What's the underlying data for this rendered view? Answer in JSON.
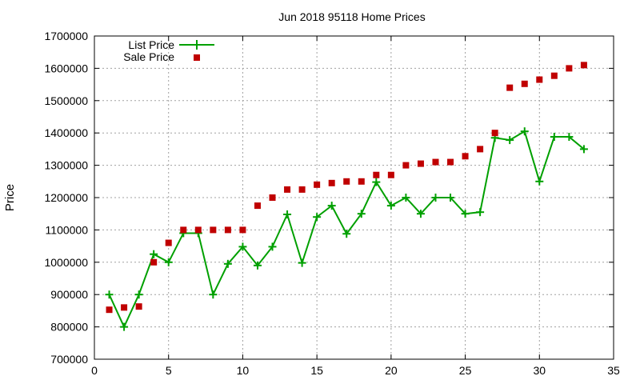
{
  "chart_data": {
    "type": "line",
    "title": "Jun 2018 95118 Home Prices",
    "xlabel": "",
    "ylabel": "Price",
    "xlim": [
      0,
      35
    ],
    "ylim": [
      700000,
      1700000
    ],
    "x_ticks": [
      0,
      5,
      10,
      15,
      20,
      25,
      30,
      35
    ],
    "y_ticks": [
      700000,
      800000,
      900000,
      1000000,
      1100000,
      1200000,
      1300000,
      1400000,
      1500000,
      1600000,
      1700000
    ],
    "grid": true,
    "legend_position": "top-left",
    "series": [
      {
        "name": "List Price",
        "style": "line-points",
        "color": "#00a000",
        "x": [
          1,
          2,
          3,
          4,
          5,
          6,
          7,
          8,
          9,
          10,
          11,
          12,
          13,
          14,
          15,
          16,
          17,
          18,
          19,
          20,
          21,
          22,
          23,
          24,
          25,
          26,
          27,
          28,
          29,
          30,
          31,
          32,
          33
        ],
        "values": [
          900000,
          800000,
          900000,
          1025000,
          1000000,
          1090000,
          1090000,
          900000,
          995000,
          1048000,
          990000,
          1048000,
          1148000,
          998000,
          1140000,
          1175000,
          1088000,
          1150000,
          1248000,
          1175000,
          1200000,
          1150000,
          1200000,
          1200000,
          1150000,
          1155000,
          1385000,
          1378000,
          1405000,
          1250000,
          1388000,
          1388000,
          1350000
        ]
      },
      {
        "name": "Sale Price",
        "style": "points",
        "color": "#c00000",
        "x": [
          1,
          2,
          3,
          4,
          5,
          6,
          7,
          8,
          9,
          10,
          11,
          12,
          13,
          14,
          15,
          16,
          17,
          18,
          19,
          20,
          21,
          22,
          23,
          24,
          25,
          26,
          27,
          28,
          29,
          30,
          31,
          32,
          33
        ],
        "values": [
          853000,
          860000,
          863000,
          1000000,
          1060000,
          1100000,
          1100000,
          1100000,
          1100000,
          1100000,
          1175000,
          1200000,
          1225000,
          1225000,
          1240000,
          1245000,
          1250000,
          1250000,
          1270000,
          1270000,
          1300000,
          1305000,
          1310000,
          1310000,
          1328000,
          1350000,
          1400000,
          1540000,
          1552000,
          1565000,
          1577000,
          1600000,
          1610000
        ]
      }
    ]
  }
}
